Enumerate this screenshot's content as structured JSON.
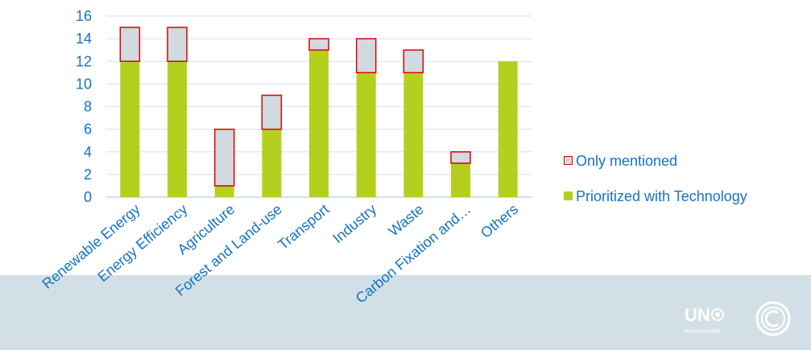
{
  "chart_data": {
    "type": "bar",
    "stacked": true,
    "categories": [
      "Renewable Energy",
      "Energy Efficiency",
      "Agriculture",
      "Forest and Land-use",
      "Transport",
      "Industry",
      "Waste",
      "Carbon Fixation and…",
      "Others"
    ],
    "series": [
      {
        "name": "Prioritized with Technology",
        "values": [
          12,
          12,
          1,
          6,
          13,
          11,
          11,
          3,
          12
        ],
        "color": "#b5cf1e"
      },
      {
        "name": "Only mentioned",
        "values": [
          3,
          3,
          5,
          3,
          1,
          3,
          2,
          1,
          0
        ],
        "color": "#d0dae0",
        "stroke": "#e00000"
      }
    ],
    "ylim": [
      0,
      16
    ],
    "yticks": [
      0,
      2,
      4,
      6,
      8,
      10,
      12,
      14,
      16
    ],
    "grid": true,
    "legend_position": "right",
    "axis_color": "#1473c2"
  },
  "legend": {
    "only_mentioned": "Only mentioned",
    "prioritized": "Prioritized with Technology"
  },
  "logo": {
    "text": "UN",
    "subtext": "environment"
  }
}
